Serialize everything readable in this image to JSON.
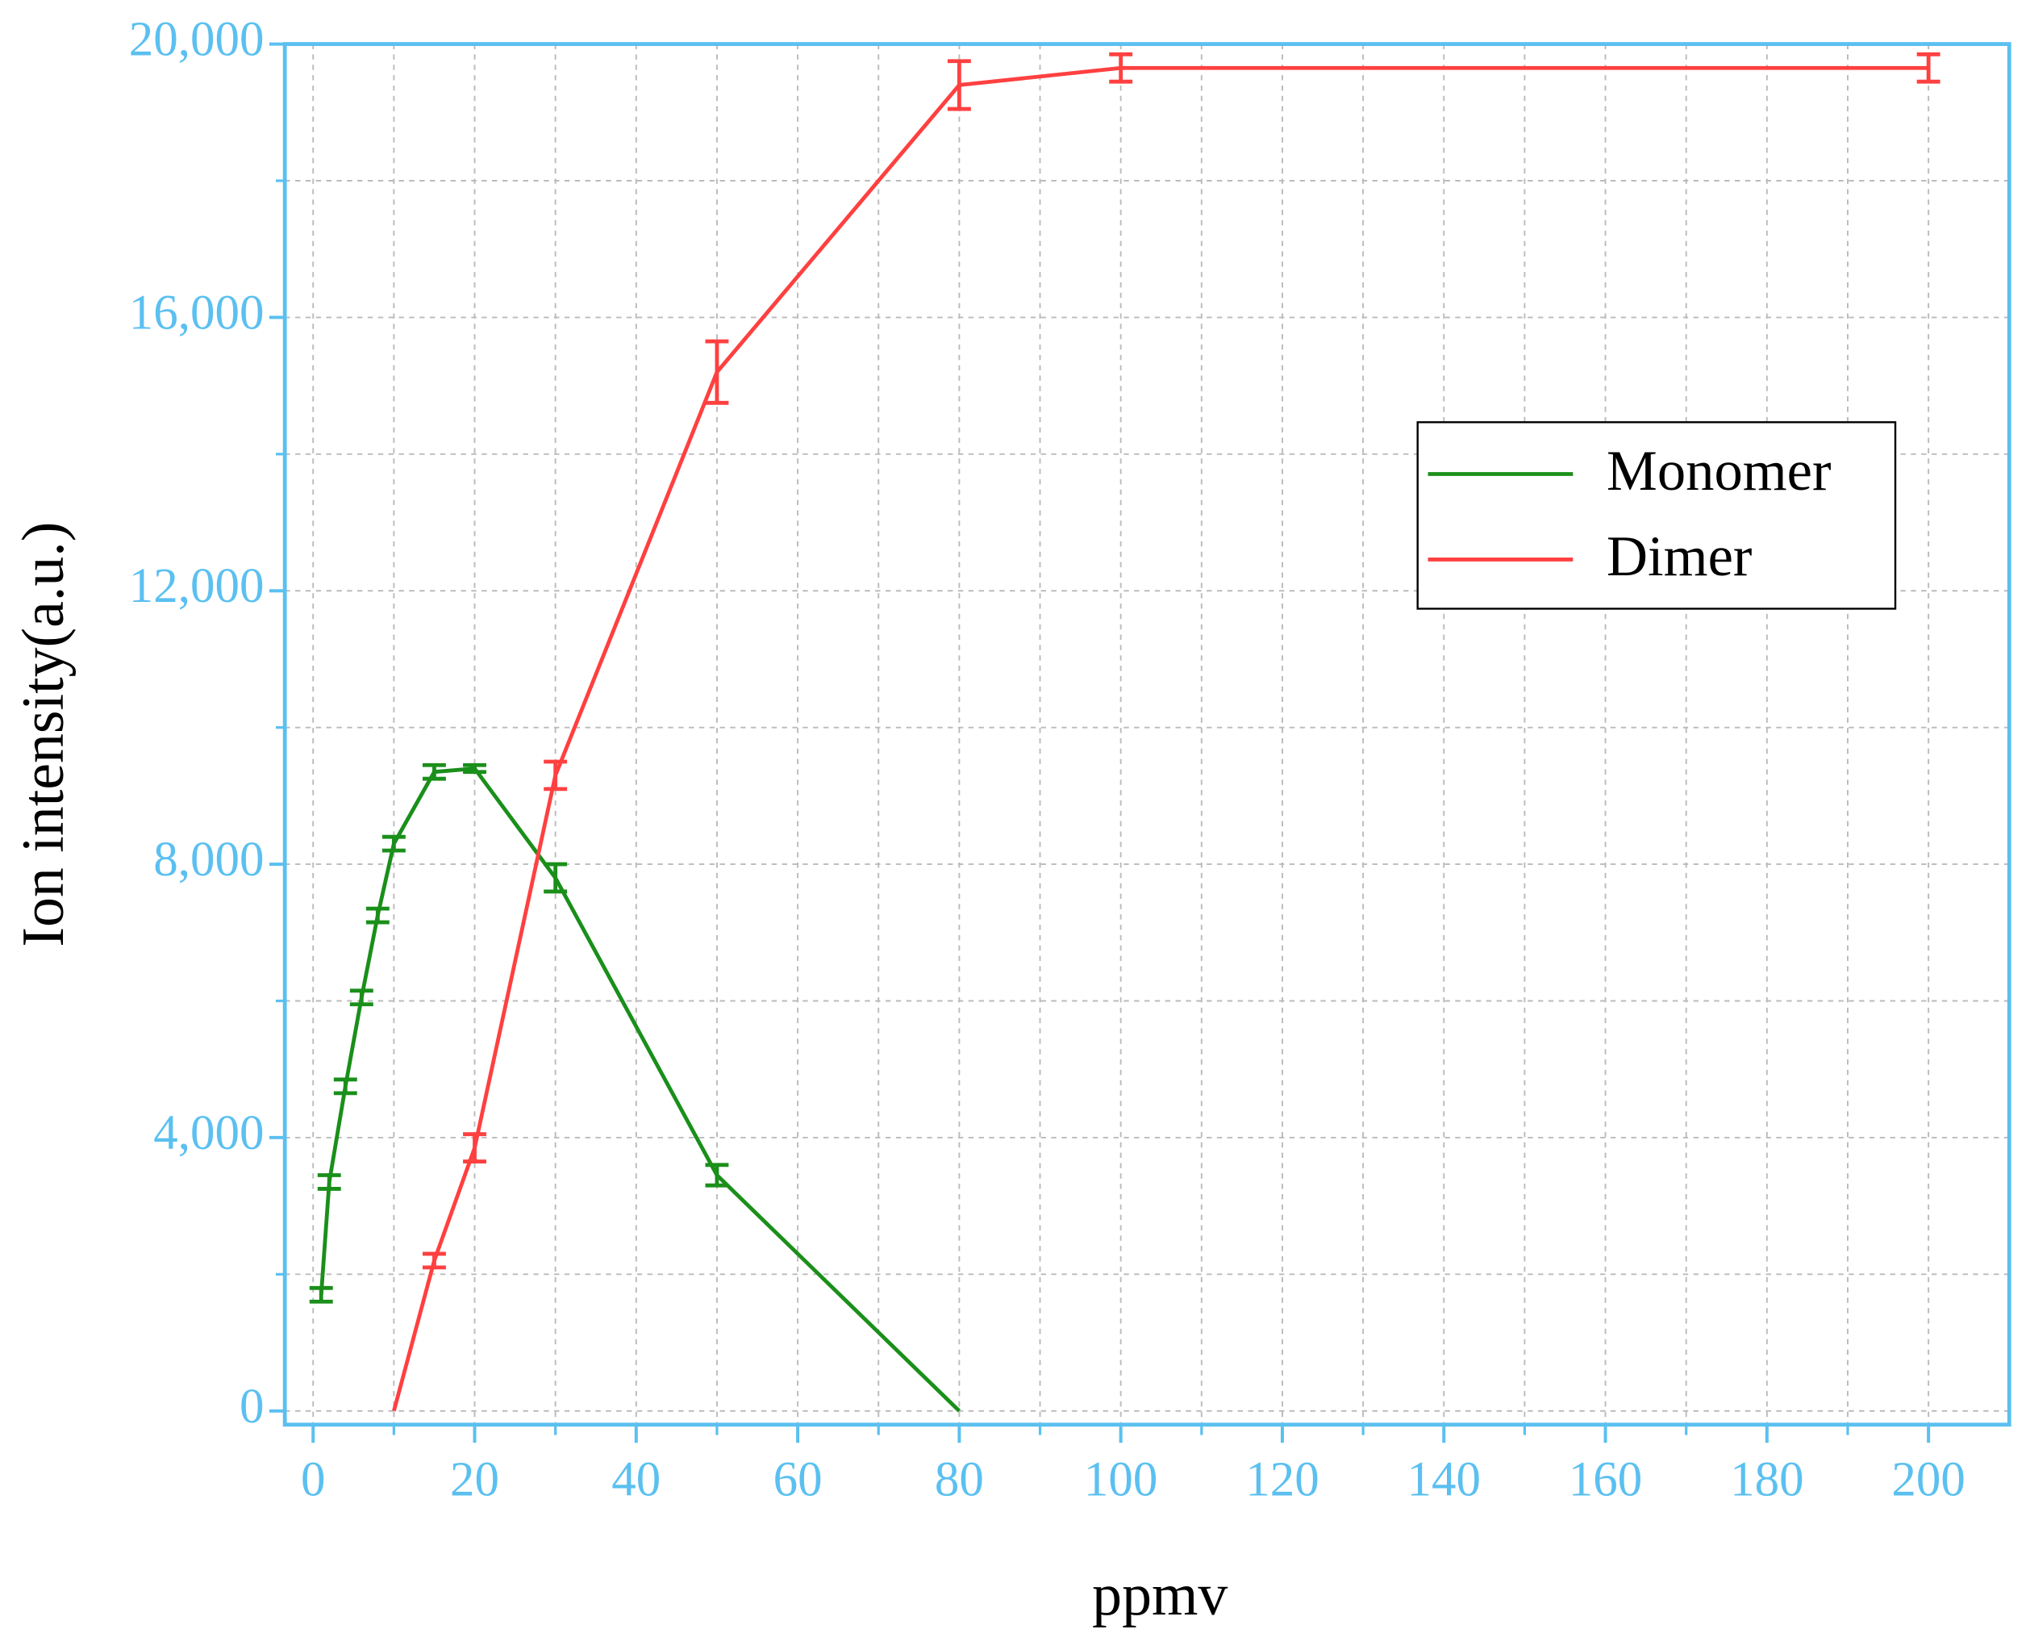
{
  "chart_data": {
    "type": "line",
    "x_label": "ppmv",
    "y_label": "Ion intensity(a.u.)",
    "xlim": [
      -3.5,
      210
    ],
    "ylim": [
      -200,
      20000
    ],
    "xticks": [
      0,
      20,
      40,
      60,
      80,
      100,
      120,
      140,
      160,
      180,
      200
    ],
    "xminorticks": [
      10,
      30,
      50,
      70,
      90,
      110,
      130,
      150,
      170,
      190
    ],
    "yticks": [
      {
        "value": 0,
        "label": "0"
      },
      {
        "value": 4000,
        "label": "4,000"
      },
      {
        "value": 8000,
        "label": "8,000"
      },
      {
        "value": 12000,
        "label": "12,000"
      },
      {
        "value": 16000,
        "label": "16,000"
      },
      {
        "value": 20000,
        "label": "20,000"
      }
    ],
    "yminorticks": [
      2000,
      6000,
      10000,
      14000,
      18000
    ],
    "grid": true,
    "legend": "upper right",
    "series": [
      {
        "name": "Monomer",
        "color": "#1a8f1a",
        "x": [
          1,
          2,
          4,
          6,
          8,
          10,
          15,
          20,
          30,
          50,
          80
        ],
        "values": [
          1700,
          3350,
          4750,
          6050,
          7250,
          8300,
          9350,
          9400,
          7800,
          3450,
          0
        ],
        "errors": [
          100,
          100,
          100,
          100,
          100,
          100,
          100,
          50,
          200,
          150,
          null
        ]
      },
      {
        "name": "Dimer",
        "color": "#ff4040",
        "x": [
          10,
          15,
          20,
          30,
          50,
          80,
          100,
          200
        ],
        "values": [
          0,
          2200,
          3850,
          9300,
          15200,
          19400,
          19650,
          19650
        ],
        "errors": [
          null,
          100,
          200,
          200,
          450,
          350,
          200,
          200
        ]
      }
    ]
  }
}
